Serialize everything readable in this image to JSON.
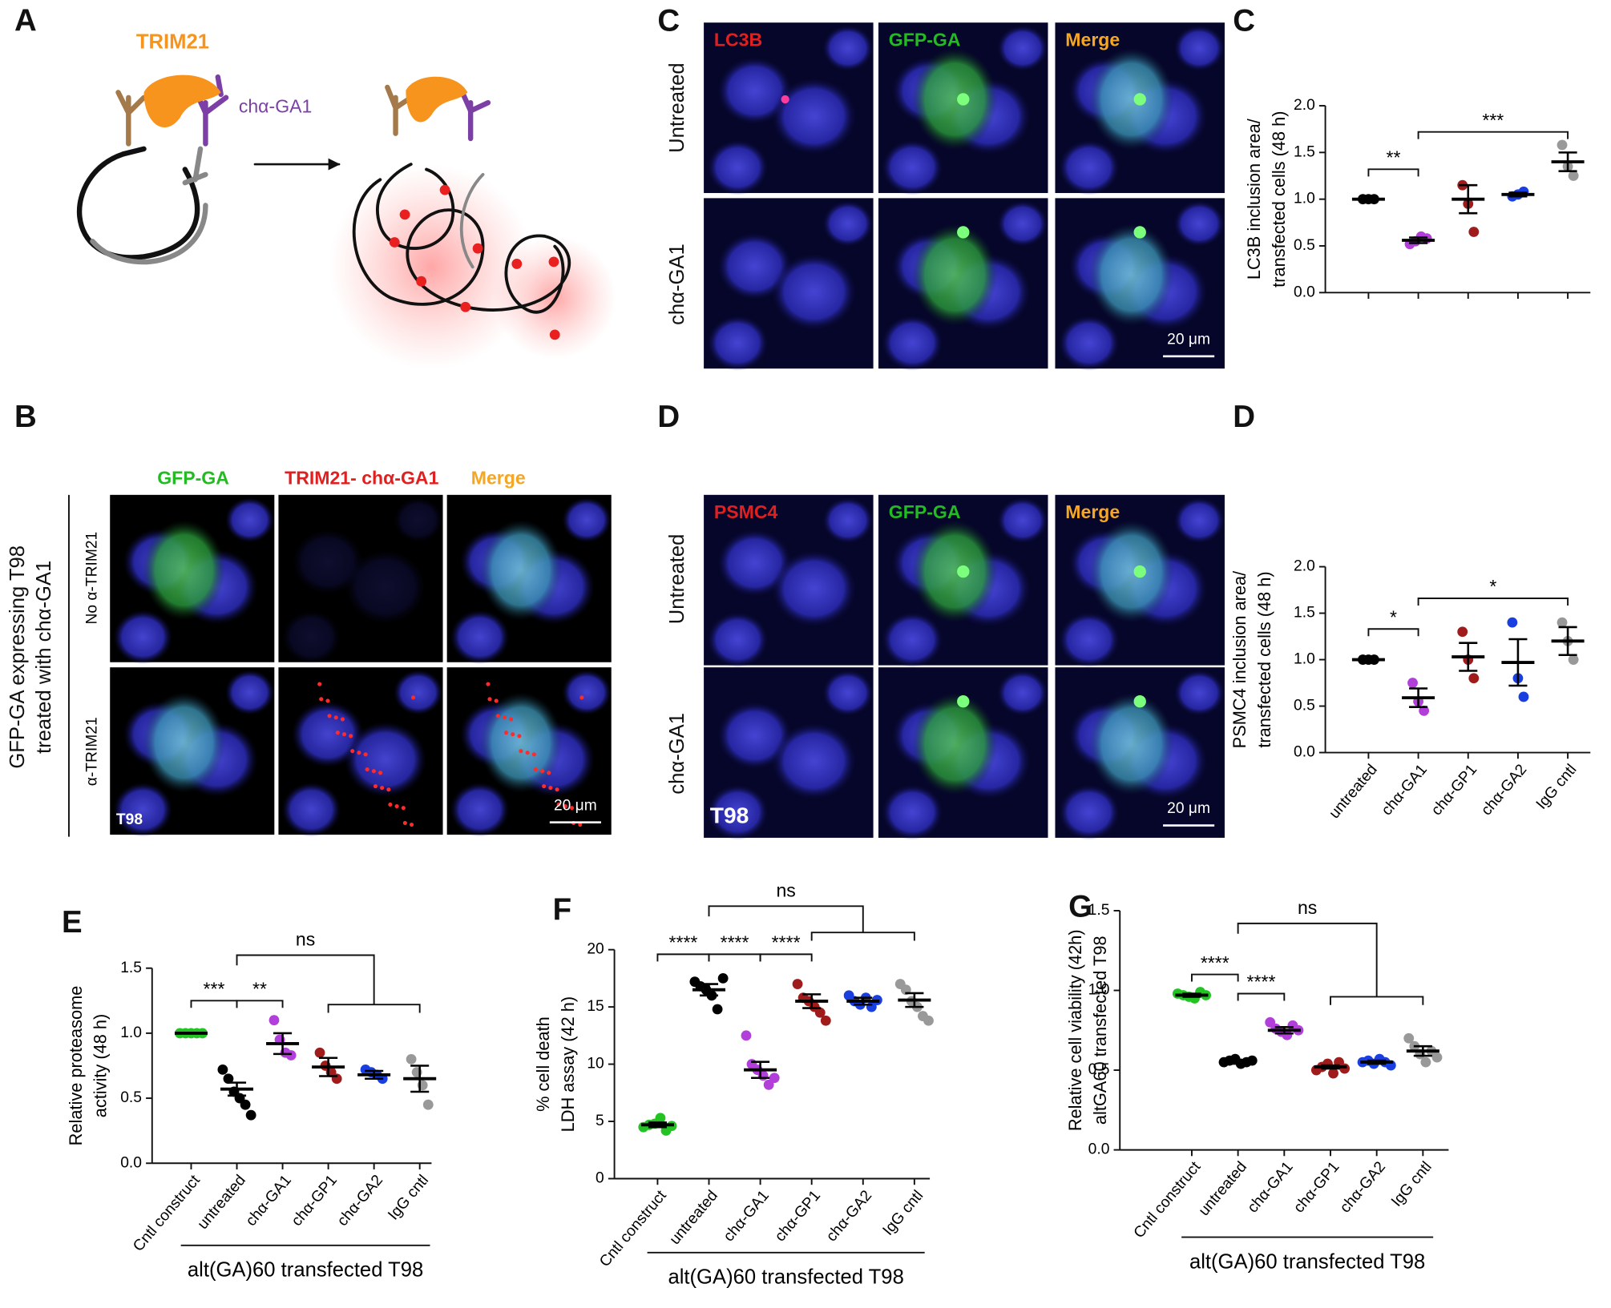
{
  "panels": {
    "A": {
      "letter": "A",
      "trim21": "TRIM21",
      "antibody": "chα-GA1"
    },
    "B": {
      "letter": "B",
      "side_label": [
        "GFP-GA expressing T98",
        "treated with chα-GA1"
      ],
      "columns": [
        "GFP-GA",
        "TRIM21- chα-GA1",
        "Merge"
      ],
      "rows": [
        "No α-TRIM21",
        "α-TRIM21"
      ],
      "cell_line": "T98",
      "scale_bar": "20 μm"
    },
    "C": {
      "letter": "C",
      "columns": [
        "LC3B",
        "GFP-GA",
        "Merge"
      ],
      "rows": [
        "Untreated",
        "chα-GA1"
      ],
      "scale_bar": "20 μm"
    },
    "D": {
      "letter": "D",
      "columns": [
        "PSMC4",
        "GFP-GA",
        "Merge"
      ],
      "rows": [
        "Untreated",
        "chα-GA1"
      ],
      "cell_line": "T98",
      "scale_bar": "20 μm"
    }
  },
  "chart_data": [
    {
      "type": "dotplot",
      "panel": "C",
      "ylabel": [
        "LC3B inclusion area/",
        "transfected cells (48 h)"
      ],
      "categories": [
        null,
        null,
        null,
        null,
        null
      ],
      "groups": [
        {
          "color": "#000000",
          "values": [
            1,
            1,
            1
          ],
          "mean": 1,
          "sem": 0
        },
        {
          "color": "#b23fd9",
          "values": [
            0.52,
            0.55,
            0.6,
            0.58
          ],
          "mean": 0.56,
          "sem": 0.03
        },
        {
          "color": "#a01c1c",
          "values": [
            1.15,
            0.95,
            0.65
          ],
          "mean": 1.0,
          "sem": 0.15
        },
        {
          "color": "#1a3fe0",
          "values": [
            1.03,
            1.05,
            1.08
          ],
          "mean": 1.05,
          "sem": 0.02
        },
        {
          "color": "#999999",
          "values": [
            1.58,
            1.35,
            1.25
          ],
          "mean": 1.4,
          "sem": 0.1
        }
      ],
      "ylim": [
        0,
        2
      ],
      "yticks": [
        {
          "value": 0,
          "label": "0.0"
        },
        {
          "value": 0.5,
          "label": "0.5"
        },
        {
          "value": 1,
          "label": "1.0"
        },
        {
          "value": 1.5,
          "label": "1.5"
        },
        {
          "value": 2,
          "label": "2.0"
        }
      ],
      "brackets": [
        {
          "label": "**",
          "from": 0,
          "to": 1
        },
        {
          "label": "***",
          "from": 1,
          "to": 4
        }
      ]
    },
    {
      "type": "dotplot",
      "panel": "D",
      "ylabel": [
        "PSMC4 inclusion area/",
        "transfected cells (48 h)"
      ],
      "categories": [
        "untreated",
        "chα-GA1",
        "chα-GP1",
        "chα-GA2",
        "IgG cntl"
      ],
      "groups": [
        {
          "color": "#000000",
          "values": [
            1,
            1,
            1
          ],
          "mean": 1,
          "sem": 0
        },
        {
          "color": "#b23fd9",
          "values": [
            0.75,
            0.55,
            0.45
          ],
          "mean": 0.59,
          "sem": 0.1
        },
        {
          "color": "#a01c1c",
          "values": [
            1.3,
            1.0,
            0.8
          ],
          "mean": 1.03,
          "sem": 0.15
        },
        {
          "color": "#1a3fe0",
          "values": [
            1.4,
            0.8,
            0.6
          ],
          "mean": 0.97,
          "sem": 0.25
        },
        {
          "color": "#999999",
          "values": [
            1.4,
            1.2,
            1.0
          ],
          "mean": 1.2,
          "sem": 0.15
        }
      ],
      "ylim": [
        0,
        2
      ],
      "yticks": [
        {
          "value": 0,
          "label": "0.0"
        },
        {
          "value": 0.5,
          "label": "0.5"
        },
        {
          "value": 1,
          "label": "1.0"
        },
        {
          "value": 1.5,
          "label": "1.5"
        },
        {
          "value": 2,
          "label": "2.0"
        }
      ],
      "brackets": [
        {
          "label": "*",
          "from": 0,
          "to": 1
        },
        {
          "label": "*",
          "from": 1,
          "to": 4
        }
      ]
    },
    {
      "type": "dotplot",
      "panel": "E",
      "ylabel": [
        "Relative proteasome",
        "activity (48 h)"
      ],
      "categories": [
        "Cntl construct",
        "untreated",
        "chα-GA1",
        "chα-GP1",
        "chα-GA2",
        "IgG cntl"
      ],
      "group_label": "alt(GA)60 transfected T98",
      "groups": [
        {
          "color": "#22c322",
          "values": [
            1,
            1,
            1,
            1,
            1
          ],
          "mean": 1,
          "sem": 0
        },
        {
          "color": "#000000",
          "values": [
            0.72,
            0.65,
            0.55,
            0.5,
            0.45,
            0.37
          ],
          "mean": 0.57,
          "sem": 0.05
        },
        {
          "color": "#b23fd9",
          "values": [
            1.1,
            0.95,
            0.85,
            0.83
          ],
          "mean": 0.92,
          "sem": 0.08
        },
        {
          "color": "#a01c1c",
          "values": [
            0.85,
            0.75,
            0.7,
            0.65
          ],
          "mean": 0.74,
          "sem": 0.07
        },
        {
          "color": "#1a3fe0",
          "values": [
            0.72,
            0.7,
            0.68,
            0.65
          ],
          "mean": 0.68,
          "sem": 0.03
        },
        {
          "color": "#999999",
          "values": [
            0.8,
            0.7,
            0.6,
            0.45
          ],
          "mean": 0.65,
          "sem": 0.1
        }
      ],
      "ylim": [
        0,
        1.5
      ],
      "yticks": [
        {
          "value": 0,
          "label": "0.0"
        },
        {
          "value": 0.5,
          "label": "0.5"
        },
        {
          "value": 1,
          "label": "1.0"
        },
        {
          "value": 1.5,
          "label": "1.5"
        }
      ],
      "brackets": [
        {
          "label": "***",
          "from": 0,
          "to": 1
        },
        {
          "label": "**",
          "from": 1,
          "to": 2
        },
        {
          "label": "ns",
          "from": 1,
          "to": [
            3,
            5
          ]
        }
      ]
    },
    {
      "type": "dotplot",
      "panel": "F",
      "ylabel": [
        "% cell death",
        "LDH assay (42 h)"
      ],
      "categories": [
        "Cntl construct",
        "untreated",
        "chα-GA1",
        "chα-GP1",
        "chα-GA2",
        "IgG cntl"
      ],
      "group_label": "alt(GA)60 transfected T98",
      "groups": [
        {
          "color": "#22c322",
          "values": [
            4.5,
            4.7,
            4.8,
            5.3,
            4.2,
            4.6
          ],
          "mean": 4.7,
          "sem": 0.2
        },
        {
          "color": "#000000",
          "values": [
            17.2,
            16.8,
            16.5,
            16,
            14.8,
            17.5
          ],
          "mean": 16.5,
          "sem": 0.5
        },
        {
          "color": "#b23fd9",
          "values": [
            12.5,
            10,
            9.5,
            9,
            8.2,
            8.8
          ],
          "mean": 9.5,
          "sem": 0.7
        },
        {
          "color": "#a01c1c",
          "values": [
            17,
            15.8,
            15.5,
            15,
            14.5,
            13.8
          ],
          "mean": 15.5,
          "sem": 0.6
        },
        {
          "color": "#1a3fe0",
          "values": [
            16,
            15.5,
            15.2,
            15.8,
            15,
            15.6
          ],
          "mean": 15.5,
          "sem": 0.3
        },
        {
          "color": "#999999",
          "values": [
            17,
            16.5,
            15.5,
            15,
            14.2,
            13.8
          ],
          "mean": 15.6,
          "sem": 0.6
        }
      ],
      "ylim": [
        0,
        20
      ],
      "yticks": [
        0,
        5,
        10,
        15,
        20
      ],
      "brackets": [
        {
          "label": "****",
          "from": 0,
          "to": 1
        },
        {
          "label": "****",
          "from": 1,
          "to": 2
        },
        {
          "label": "****",
          "from": 2,
          "to": 3
        },
        {
          "label": "ns",
          "from": 1,
          "to": [
            3,
            5
          ]
        }
      ]
    },
    {
      "type": "dotplot",
      "panel": "G",
      "ylabel": [
        "Relative cell viability (42h)",
        "altGA60 transfected T98"
      ],
      "categories": [
        "Cntl construct",
        "untreated",
        "chα-GA1",
        "chα-GP1",
        "chα-GA2",
        "IgG cntl"
      ],
      "group_label": "alt(GA)60 transfected T98",
      "groups": [
        {
          "color": "#22c322",
          "values": [
            0.98,
            0.97,
            0.96,
            0.95,
            0.99,
            0.97
          ],
          "mean": 0.97,
          "sem": 0.01
        },
        {
          "color": "#000000",
          "values": [
            0.55,
            0.56,
            0.57,
            0.54,
            0.55,
            0.56
          ],
          "mean": 0.55,
          "sem": 0.01
        },
        {
          "color": "#b23fd9",
          "values": [
            0.8,
            0.76,
            0.74,
            0.72,
            0.78,
            0.75
          ],
          "mean": 0.75,
          "sem": 0.02
        },
        {
          "color": "#a01c1c",
          "values": [
            0.5,
            0.52,
            0.54,
            0.48,
            0.55,
            0.51
          ],
          "mean": 0.52,
          "sem": 0.01
        },
        {
          "color": "#1a3fe0",
          "values": [
            0.55,
            0.56,
            0.54,
            0.57,
            0.55,
            0.53
          ],
          "mean": 0.55,
          "sem": 0.01
        },
        {
          "color": "#999999",
          "values": [
            0.7,
            0.65,
            0.6,
            0.55,
            0.62,
            0.58
          ],
          "mean": 0.62,
          "sem": 0.03
        }
      ],
      "ylim": [
        0,
        1.5
      ],
      "yticks": [
        {
          "value": 0,
          "label": "0.0"
        },
        {
          "value": 0.5,
          "label": "0.5"
        },
        {
          "value": 1,
          "label": "1.0"
        },
        {
          "value": 1.5,
          "label": "1.5"
        }
      ],
      "brackets": [
        {
          "label": "****",
          "from": 0,
          "to": 1
        },
        {
          "label": "****",
          "from": 1,
          "to": 2
        },
        {
          "label": "ns",
          "from": 1,
          "to": [
            3,
            5
          ]
        }
      ]
    }
  ]
}
